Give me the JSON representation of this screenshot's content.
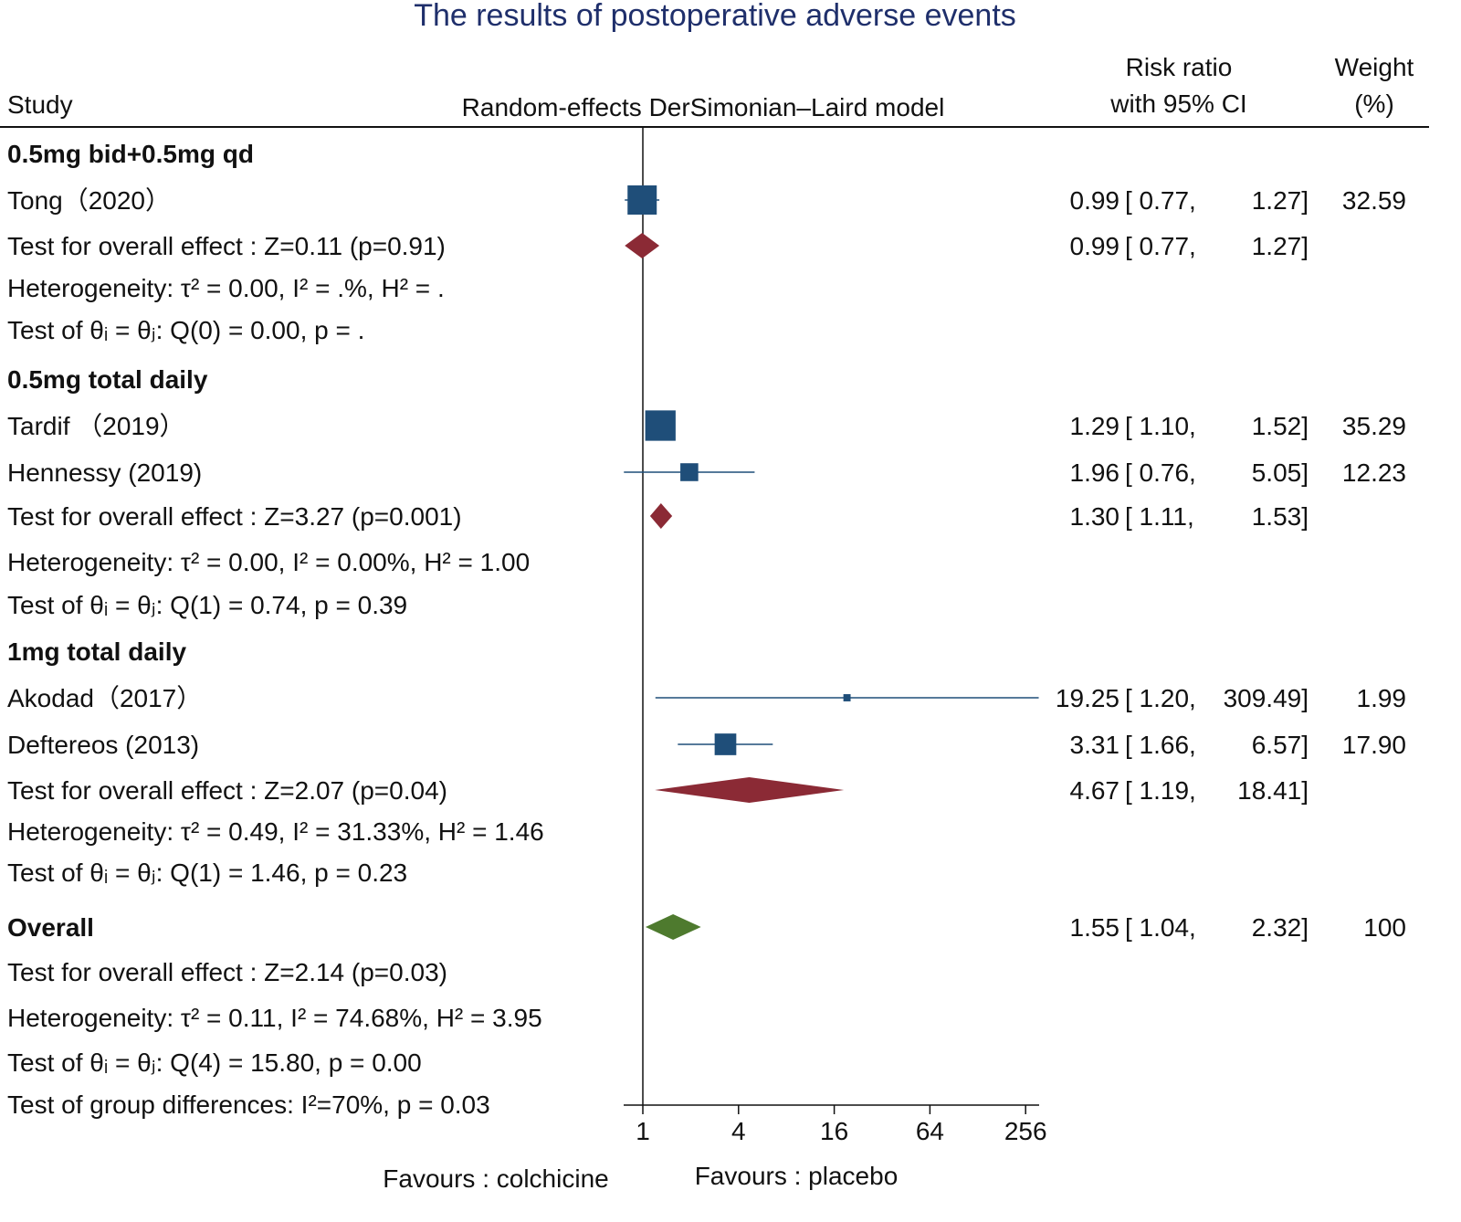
{
  "chart_data": {
    "type": "forest",
    "title": "The results of postoperative adverse events",
    "headers": {
      "study": "Study",
      "model": "Random-effects DerSimonian–Laird model",
      "rr_line1": "Risk ratio",
      "rr_line2": "with 95% CI",
      "weight_line1": "Weight",
      "weight_line2": "(%)"
    },
    "x_axis": {
      "scale": "log",
      "ticks": [
        1,
        4,
        16,
        64,
        256
      ],
      "range": [
        0.76,
        310
      ],
      "null_line": 1
    },
    "favours_left": "Favours : colchicine",
    "favours_right": "Favours : placebo",
    "colors": {
      "study": "#1f4e79",
      "subgroup": "#8b2a35",
      "overall": "#4e7a2e"
    },
    "rows": [
      {
        "type": "group",
        "label": "0.5mg bid+0.5mg qd"
      },
      {
        "type": "study",
        "label": "Tong（2020）",
        "rr": 0.99,
        "lo": 0.77,
        "hi": 1.27,
        "rr_text": "0.99",
        "lo_text": "0.77",
        "hi_text": "1.27",
        "weight": "32.59"
      },
      {
        "type": "subtotal",
        "label": "Test for overall effect : Z=0.11 (p=0.91)",
        "rr": 0.99,
        "lo": 0.77,
        "hi": 1.27,
        "rr_text": "0.99",
        "lo_text": "0.77",
        "hi_text": "1.27"
      },
      {
        "type": "text",
        "label": "Heterogeneity:  τ² = 0.00, I² = .%, H² = ."
      },
      {
        "type": "text",
        "label": "Test of  θᵢ = θⱼ: Q(0) = 0.00, p = ."
      },
      {
        "type": "group",
        "label": "0.5mg total daily"
      },
      {
        "type": "study",
        "label": "Tardif （2019）",
        "rr": 1.29,
        "lo": 1.1,
        "hi": 1.52,
        "rr_text": "1.29",
        "lo_text": "1.10",
        "hi_text": "1.52",
        "weight": "35.29"
      },
      {
        "type": "study",
        "label": "Hennessy (2019)",
        "rr": 1.96,
        "lo": 0.76,
        "hi": 5.05,
        "rr_text": "1.96",
        "lo_text": "0.76",
        "hi_text": "5.05",
        "weight": "12.23"
      },
      {
        "type": "subtotal",
        "label": "Test for overall effect : Z=3.27 (p=0.001)",
        "rr": 1.3,
        "lo": 1.11,
        "hi": 1.53,
        "rr_text": "1.30",
        "lo_text": "1.11",
        "hi_text": "1.53"
      },
      {
        "type": "text",
        "label": "Heterogeneity:  τ² = 0.00, I² = 0.00%, H² = 1.00"
      },
      {
        "type": "text",
        "label": "Test of  θᵢ = θⱼ: Q(1) = 0.74, p = 0.39"
      },
      {
        "type": "group",
        "label": "1mg total daily"
      },
      {
        "type": "study",
        "label": "Akodad（2017）",
        "rr": 19.25,
        "lo": 1.2,
        "hi": 309.49,
        "rr_text": "19.25",
        "lo_text": "1.20",
        "hi_text": "309.49",
        "weight": "1.99"
      },
      {
        "type": "study",
        "label": "Deftereos (2013)",
        "rr": 3.31,
        "lo": 1.66,
        "hi": 6.57,
        "rr_text": "3.31",
        "lo_text": "1.66",
        "hi_text": "6.57",
        "weight": "17.90"
      },
      {
        "type": "subtotal",
        "label": "Test for overall effect : Z=2.07 (p=0.04)",
        "rr": 4.67,
        "lo": 1.19,
        "hi": 18.41,
        "rr_text": "4.67",
        "lo_text": "1.19",
        "hi_text": "18.41"
      },
      {
        "type": "text",
        "label": "Heterogeneity:  τ² = 0.49, I² = 31.33%, H² = 1.46"
      },
      {
        "type": "text",
        "label": "Test of  θᵢ = θⱼ: Q(1) = 1.46, p = 0.23"
      },
      {
        "type": "overall",
        "label": "Overall",
        "rr": 1.55,
        "lo": 1.04,
        "hi": 2.32,
        "rr_text": "1.55",
        "lo_text": "1.04",
        "hi_text": "2.32",
        "weight": "100"
      },
      {
        "type": "text",
        "label": "Test for overall effect : Z=2.14 (p=0.03)"
      },
      {
        "type": "text",
        "label": "Heterogeneity:  τ² = 0.11, I² = 74.68%, H² = 3.95"
      },
      {
        "type": "text",
        "label": "Test of  θᵢ = θⱼ: Q(4) = 15.80, p = 0.00"
      },
      {
        "type": "text",
        "label": "Test of group differences: I²=70%, p = 0.03"
      }
    ]
  }
}
